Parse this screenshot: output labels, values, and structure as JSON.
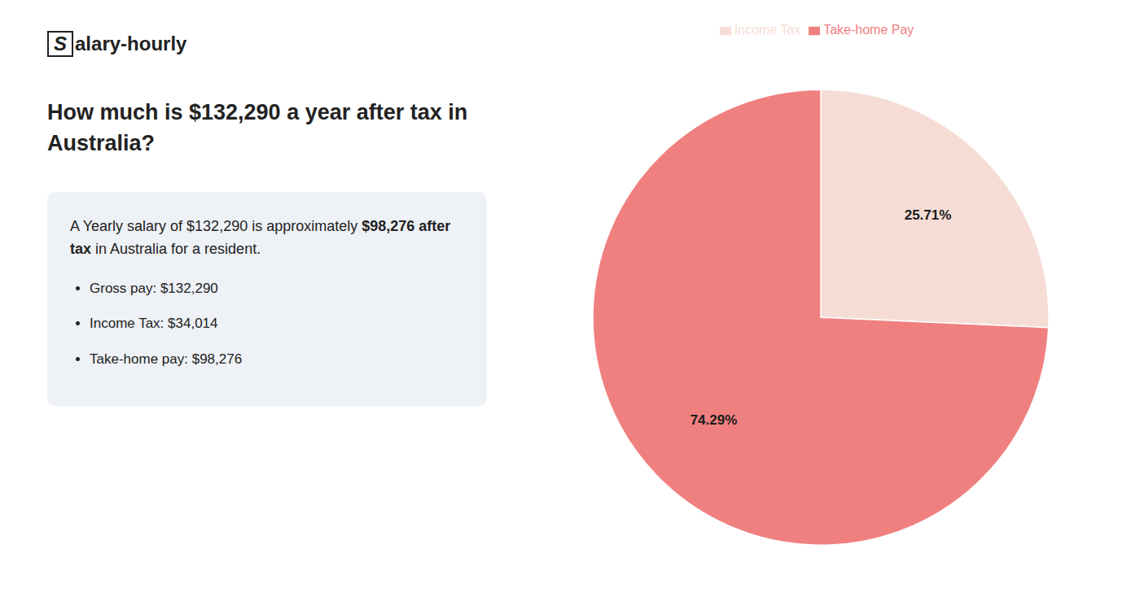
{
  "chart_data": {
    "type": "pie",
    "title": "How much is $132,290 a year after tax in Australia?",
    "categories": [
      "Income Tax",
      "Take-home Pay"
    ],
    "values": [
      25.71,
      74.29
    ],
    "value_labels": [
      "25.71%",
      "74.29%"
    ],
    "colors": [
      "#f5ddd5",
      "#f08080"
    ],
    "data_labels": true,
    "legend": "top",
    "annotations": [
      "Salary-hourly",
      "A Yearly salary of $132,290 is approximately ",
      "$98,276 after tax",
      "in Australia for a resident.",
      "Gross pay: $132,290",
      "Income Tax: $34,014",
      "Take-home pay: $98,276"
    ]
  }
}
